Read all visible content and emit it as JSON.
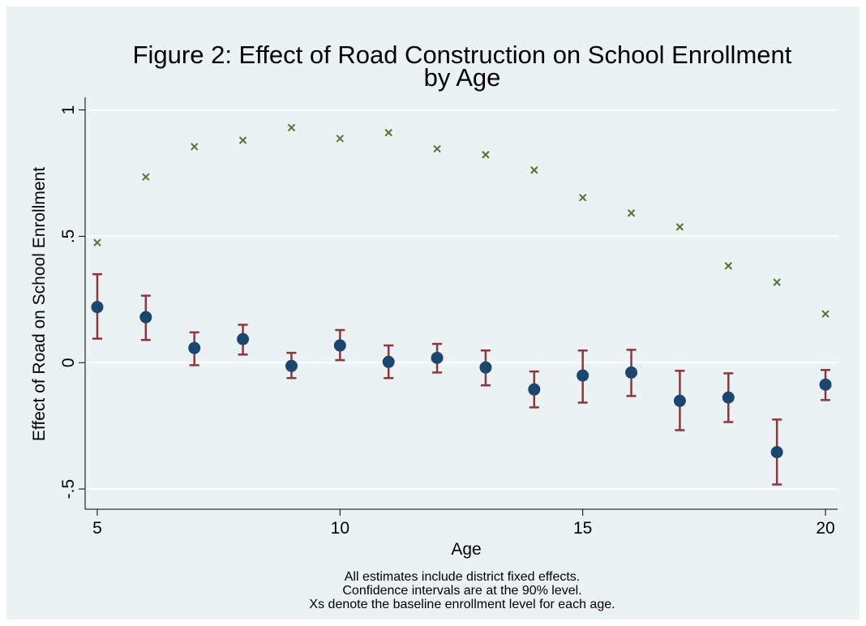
{
  "chart_data": {
    "type": "scatter",
    "title": [
      "Figure 2: Effect of Road Construction on School Enrollment",
      "by Age"
    ],
    "x_label": "Age",
    "y_label": "Effect of Road on School Enrollment",
    "notes": [
      "All estimates include district fixed effects.",
      "Confidence intervals are at the 90% level.",
      "Xs denote the baseline enrollment level for each age."
    ],
    "x": [
      5,
      6,
      7,
      8,
      9,
      10,
      11,
      12,
      13,
      14,
      15,
      16,
      17,
      18,
      19,
      20
    ],
    "series": [
      {
        "marker": "circle",
        "color": "#1a476f",
        "error_color": "#90353b",
        "values": [
          0.22,
          0.18,
          0.058,
          0.093,
          -0.013,
          0.068,
          0.003,
          0.019,
          -0.019,
          -0.106,
          -0.051,
          -0.039,
          -0.151,
          -0.138,
          -0.354,
          -0.087
        ],
        "ci_high": [
          0.35,
          0.265,
          0.12,
          0.15,
          0.039,
          0.129,
          0.068,
          0.074,
          0.048,
          -0.035,
          0.048,
          0.051,
          -0.032,
          -0.042,
          -0.225,
          -0.029
        ],
        "ci_low": [
          0.095,
          0.09,
          -0.01,
          0.032,
          -0.061,
          0.01,
          -0.061,
          -0.039,
          -0.09,
          -0.177,
          -0.158,
          -0.132,
          -0.267,
          -0.235,
          -0.482,
          -0.148
        ]
      },
      {
        "marker": "x",
        "color": "#55752f",
        "values": [
          0.475,
          0.735,
          0.855,
          0.88,
          0.93,
          0.887,
          0.91,
          0.846,
          0.823,
          0.762,
          0.653,
          0.592,
          0.537,
          0.383,
          0.318,
          0.193
        ]
      }
    ],
    "xlim": [
      4.75,
      20.25
    ],
    "ylim": [
      -0.58,
      1.05
    ],
    "xticks": [
      5,
      10,
      15,
      20
    ],
    "yticks": [
      {
        "value": -0.5,
        "label": "-.5"
      },
      0,
      {
        "value": 0.5,
        "label": ".5"
      },
      1
    ],
    "grid": true
  }
}
